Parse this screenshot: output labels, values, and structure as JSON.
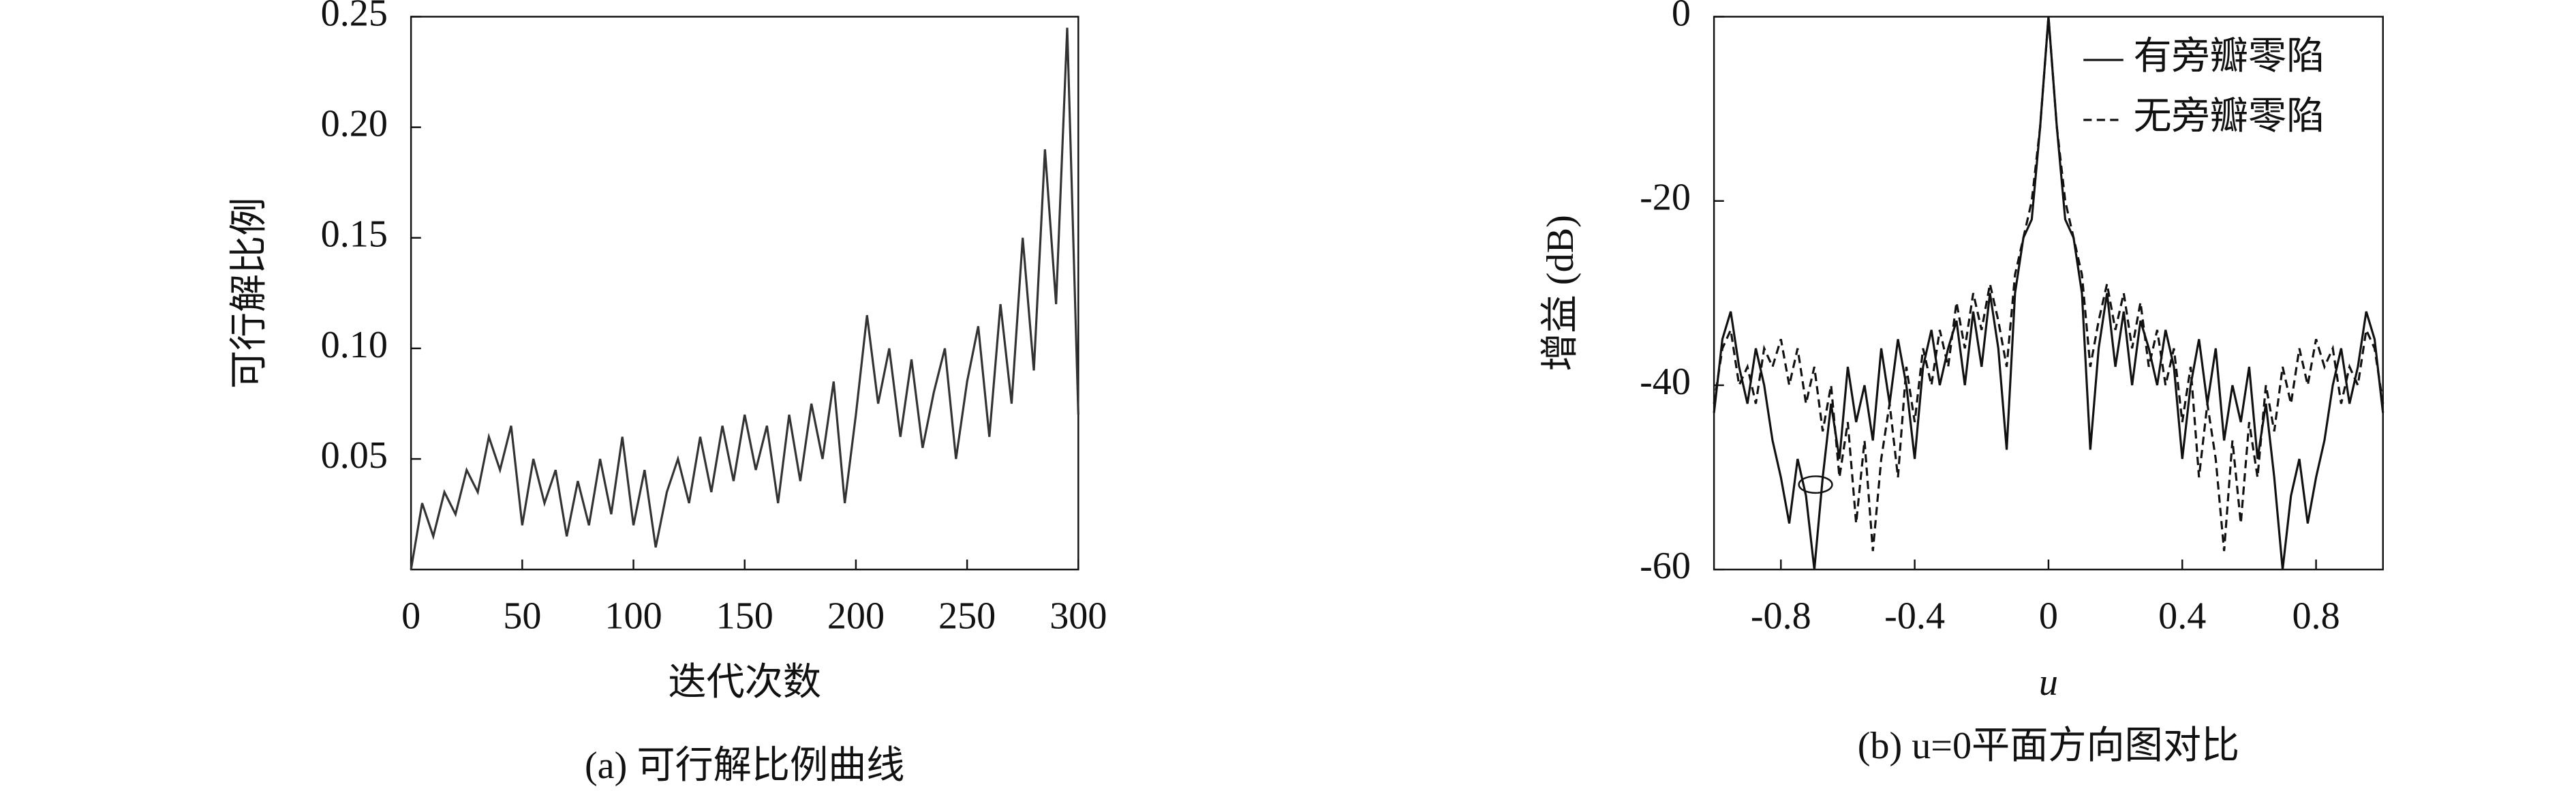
{
  "chart_data": [
    {
      "type": "line",
      "xlabel": "迭代次数",
      "ylabel": "可行解比例",
      "caption": "(a) 可行解比例曲线",
      "xlim": [
        0,
        300
      ],
      "ylim": [
        0,
        0.25
      ],
      "xticks": [
        0,
        50,
        100,
        150,
        200,
        250,
        300
      ],
      "yticks": [
        0.05,
        {
          "value": 0.1,
          "label": "0.10"
        },
        0.15,
        {
          "value": 0.2,
          "label": "0.20"
        },
        0.25
      ],
      "x": [
        0,
        5,
        10,
        15,
        20,
        25,
        30,
        35,
        40,
        45,
        50,
        55,
        60,
        65,
        70,
        75,
        80,
        85,
        90,
        95,
        100,
        105,
        110,
        115,
        120,
        125,
        130,
        135,
        140,
        145,
        150,
        155,
        160,
        165,
        170,
        175,
        180,
        185,
        190,
        195,
        200,
        205,
        210,
        215,
        220,
        225,
        230,
        235,
        240,
        245,
        250,
        255,
        260,
        265,
        270,
        275,
        280,
        285,
        290,
        295,
        300
      ],
      "series": [
        {
          "color": "#333333",
          "style": "solid",
          "values": [
            0.0,
            0.03,
            0.015,
            0.035,
            0.025,
            0.045,
            0.035,
            0.06,
            0.045,
            0.065,
            0.02,
            0.05,
            0.03,
            0.045,
            0.015,
            0.04,
            0.02,
            0.05,
            0.025,
            0.06,
            0.02,
            0.045,
            0.01,
            0.035,
            0.05,
            0.03,
            0.06,
            0.035,
            0.065,
            0.04,
            0.07,
            0.045,
            0.065,
            0.03,
            0.07,
            0.04,
            0.075,
            0.05,
            0.085,
            0.03,
            0.07,
            0.115,
            0.075,
            0.1,
            0.06,
            0.095,
            0.055,
            0.08,
            0.1,
            0.05,
            0.085,
            0.11,
            0.06,
            0.12,
            0.075,
            0.15,
            0.09,
            0.19,
            0.12,
            0.245,
            0.07
          ]
        }
      ]
    },
    {
      "type": "line",
      "xlabel": "u",
      "ylabel": "增益 (dB)",
      "caption": "(b) u=0平面方向图对比",
      "xlim": [
        -1,
        1
      ],
      "ylim": [
        -60,
        0
      ],
      "xticks": [
        -0.8,
        -0.4,
        0,
        0.4,
        0.8
      ],
      "yticks": [
        -60,
        -40,
        -20,
        0
      ],
      "legend": "upper right",
      "x": [
        -1,
        -0.975,
        -0.95,
        -0.925,
        -0.9,
        -0.875,
        -0.85,
        -0.825,
        -0.8,
        -0.775,
        -0.75,
        -0.725,
        -0.7,
        -0.675,
        -0.65,
        -0.625,
        -0.6,
        -0.575,
        -0.55,
        -0.525,
        -0.5,
        -0.475,
        -0.45,
        -0.425,
        -0.4,
        -0.375,
        -0.35,
        -0.325,
        -0.3,
        -0.275,
        -0.25,
        -0.225,
        -0.2,
        -0.175,
        -0.15,
        -0.125,
        -0.1,
        -0.075,
        -0.05,
        -0.025,
        0,
        0.025,
        0.05,
        0.075,
        0.1,
        0.125,
        0.15,
        0.175,
        0.2,
        0.225,
        0.25,
        0.275,
        0.3,
        0.325,
        0.35,
        0.375,
        0.4,
        0.425,
        0.45,
        0.475,
        0.5,
        0.525,
        0.55,
        0.575,
        0.6,
        0.625,
        0.65,
        0.675,
        0.7,
        0.725,
        0.75,
        0.775,
        0.8,
        0.825,
        0.85,
        0.875,
        0.9,
        0.925,
        0.95,
        0.975,
        1
      ],
      "series": [
        {
          "name": "有旁瓣零陷",
          "color": "#111111",
          "style": "solid",
          "values": [
            -43,
            -35,
            -32,
            -38,
            -42,
            -36,
            -40,
            -46,
            -50,
            -55,
            -48,
            -52,
            -60,
            -50,
            -42,
            -48,
            -38,
            -44,
            -40,
            -46,
            -36,
            -42,
            -35,
            -40,
            -48,
            -38,
            -34,
            -40,
            -36,
            -33,
            -40,
            -32,
            -38,
            -30,
            -36,
            -47,
            -30,
            -24,
            -22,
            -12,
            0,
            -12,
            -22,
            -24,
            -30,
            -47,
            -36,
            -30,
            -38,
            -32,
            -40,
            -33,
            -36,
            -40,
            -34,
            -38,
            -48,
            -40,
            -35,
            -42,
            -36,
            -46,
            -40,
            -44,
            -38,
            -48,
            -42,
            -50,
            -60,
            -52,
            -48,
            -55,
            -50,
            -46,
            -40,
            -36,
            -42,
            -38,
            -32,
            -35,
            -43
          ]
        },
        {
          "name": "无旁瓣零陷",
          "color": "#111111",
          "style": "dashed",
          "values": [
            -42,
            -36,
            -34,
            -40,
            -38,
            -42,
            -36,
            -38,
            -35,
            -40,
            -36,
            -42,
            -38,
            -45,
            -40,
            -50,
            -44,
            -55,
            -46,
            -58,
            -48,
            -42,
            -50,
            -38,
            -44,
            -36,
            -40,
            -34,
            -38,
            -31,
            -36,
            -30,
            -34,
            -29,
            -33,
            -38,
            -28,
            -24,
            -20,
            -12,
            0,
            -12,
            -20,
            -24,
            -28,
            -38,
            -33,
            -29,
            -34,
            -30,
            -36,
            -31,
            -38,
            -34,
            -40,
            -36,
            -44,
            -38,
            -50,
            -42,
            -48,
            -58,
            -46,
            -55,
            -44,
            -50,
            -40,
            -45,
            -38,
            -42,
            -36,
            -40,
            -35,
            -38,
            -36,
            -42,
            -38,
            -40,
            -34,
            -36,
            -42
          ]
        }
      ]
    }
  ]
}
